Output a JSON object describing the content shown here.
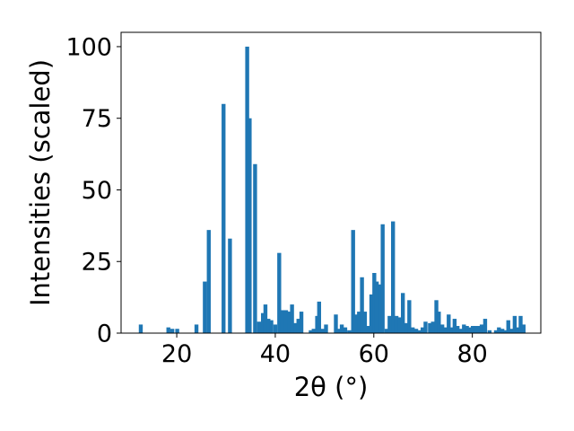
{
  "chart_data": {
    "type": "bar",
    "title": "",
    "xlabel": "2θ (°)",
    "ylabel": "Intensities (scaled)",
    "xlim": [
      8.7,
      93.9
    ],
    "ylim": [
      0,
      105
    ],
    "xticks": [
      20,
      40,
      60,
      80
    ],
    "yticks": [
      0,
      25,
      50,
      75,
      100
    ],
    "bar_color": "#1f77b4",
    "bar_width": 0.8,
    "grid": false,
    "legend": "none",
    "series": [
      {
        "values": [
          [
            12.7,
            3
          ],
          [
            18.3,
            2
          ],
          [
            19.1,
            1.5
          ],
          [
            20.1,
            1.5
          ],
          [
            24.0,
            3
          ],
          [
            25.7,
            18
          ],
          [
            26.5,
            36
          ],
          [
            29.5,
            80
          ],
          [
            30.8,
            33
          ],
          [
            34.3,
            100
          ],
          [
            34.8,
            75
          ],
          [
            35.9,
            59
          ],
          [
            36.7,
            4
          ],
          [
            37.5,
            7
          ],
          [
            38.0,
            10
          ],
          [
            38.6,
            5
          ],
          [
            39.2,
            4.5
          ],
          [
            40.0,
            3
          ],
          [
            40.8,
            28
          ],
          [
            41.5,
            8
          ],
          [
            42.2,
            8
          ],
          [
            42.8,
            7.5
          ],
          [
            43.4,
            10
          ],
          [
            44.1,
            3.5
          ],
          [
            44.7,
            5
          ],
          [
            45.3,
            7.5
          ],
          [
            47.2,
            1
          ],
          [
            47.8,
            1.5
          ],
          [
            48.5,
            6
          ],
          [
            48.9,
            11
          ],
          [
            49.6,
            1.5
          ],
          [
            50.3,
            3
          ],
          [
            52.3,
            6.5
          ],
          [
            52.9,
            1.5
          ],
          [
            53.5,
            3
          ],
          [
            54.2,
            2
          ],
          [
            55.0,
            1
          ],
          [
            55.8,
            36
          ],
          [
            56.4,
            6.5
          ],
          [
            57.0,
            7.5
          ],
          [
            57.6,
            19.5
          ],
          [
            58.2,
            7.5
          ],
          [
            58.8,
            2.5
          ],
          [
            59.5,
            13.5
          ],
          [
            60.1,
            21
          ],
          [
            60.6,
            18
          ],
          [
            61.3,
            17
          ],
          [
            61.8,
            38
          ],
          [
            62.6,
            1.5
          ],
          [
            63.2,
            6
          ],
          [
            63.9,
            39
          ],
          [
            64.6,
            6
          ],
          [
            65.2,
            5.5
          ],
          [
            65.9,
            14
          ],
          [
            66.6,
            3.5
          ],
          [
            67.2,
            11.5
          ],
          [
            67.9,
            2
          ],
          [
            68.6,
            1.5
          ],
          [
            69.3,
            1
          ],
          [
            69.9,
            2
          ],
          [
            70.5,
            4
          ],
          [
            71.4,
            3.5
          ],
          [
            72.0,
            4
          ],
          [
            72.7,
            11.5
          ],
          [
            73.2,
            7.5
          ],
          [
            73.9,
            3
          ],
          [
            74.5,
            2
          ],
          [
            75.2,
            6.5
          ],
          [
            75.8,
            2
          ],
          [
            76.4,
            5
          ],
          [
            77.0,
            2.5
          ],
          [
            77.6,
            1.5
          ],
          [
            78.3,
            3
          ],
          [
            78.9,
            2.5
          ],
          [
            79.5,
            2
          ],
          [
            80.1,
            2.5
          ],
          [
            80.7,
            2.5
          ],
          [
            81.3,
            2.5
          ],
          [
            81.9,
            3
          ],
          [
            82.6,
            5
          ],
          [
            83.5,
            1
          ],
          [
            84.8,
            1
          ],
          [
            85.4,
            2
          ],
          [
            86.1,
            1.5
          ],
          [
            86.7,
            1
          ],
          [
            87.3,
            4.5
          ],
          [
            88.0,
            1.5
          ],
          [
            88.6,
            6
          ],
          [
            89.2,
            2
          ],
          [
            89.8,
            6
          ],
          [
            90.4,
            3
          ]
        ]
      }
    ]
  }
}
